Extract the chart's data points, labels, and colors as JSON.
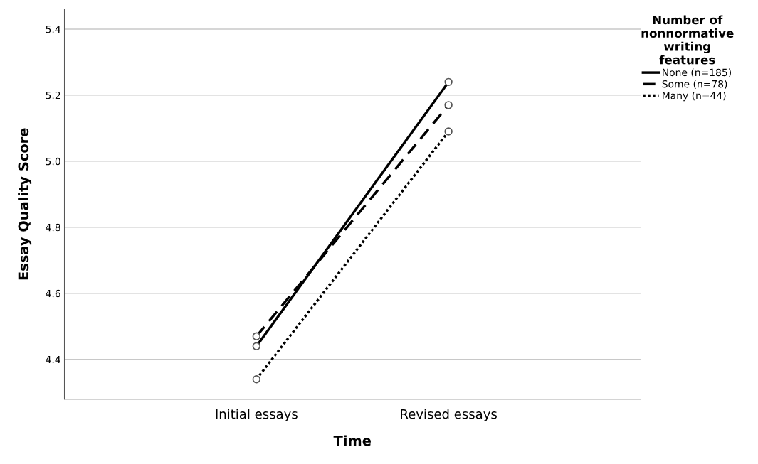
{
  "chart_data": {
    "type": "line",
    "xlabel": "Time",
    "ylabel": "Essay Quality Score",
    "legend_title": "Number of\nnonnormative\nwriting\nfeatures",
    "categories": [
      "Initial essays",
      "Revised essays"
    ],
    "series": [
      {
        "name": "None (n=185)",
        "color": "#000000",
        "values": [
          4.44,
          5.24
        ],
        "line_style": "solid"
      },
      {
        "name": "Some (n=78)",
        "color": "#000000",
        "values": [
          4.47,
          5.17
        ],
        "line_style": "dashed"
      },
      {
        "name": "Many (n=44)",
        "color": "#000000",
        "values": [
          4.34,
          5.09
        ],
        "line_style": "dotted"
      }
    ],
    "ylim": [
      4.28,
      5.46
    ],
    "yticks": [
      {
        "value": 4.4,
        "label": "4.4"
      },
      {
        "value": 4.6,
        "label": "4.6"
      },
      {
        "value": 4.8,
        "label": "4.8"
      },
      {
        "value": 5.0,
        "label": "5.0"
      },
      {
        "value": 5.2,
        "label": "5.2"
      },
      {
        "value": 5.4,
        "label": "5.4"
      }
    ],
    "grid": "y",
    "legend": "top right",
    "marker": "circle"
  }
}
